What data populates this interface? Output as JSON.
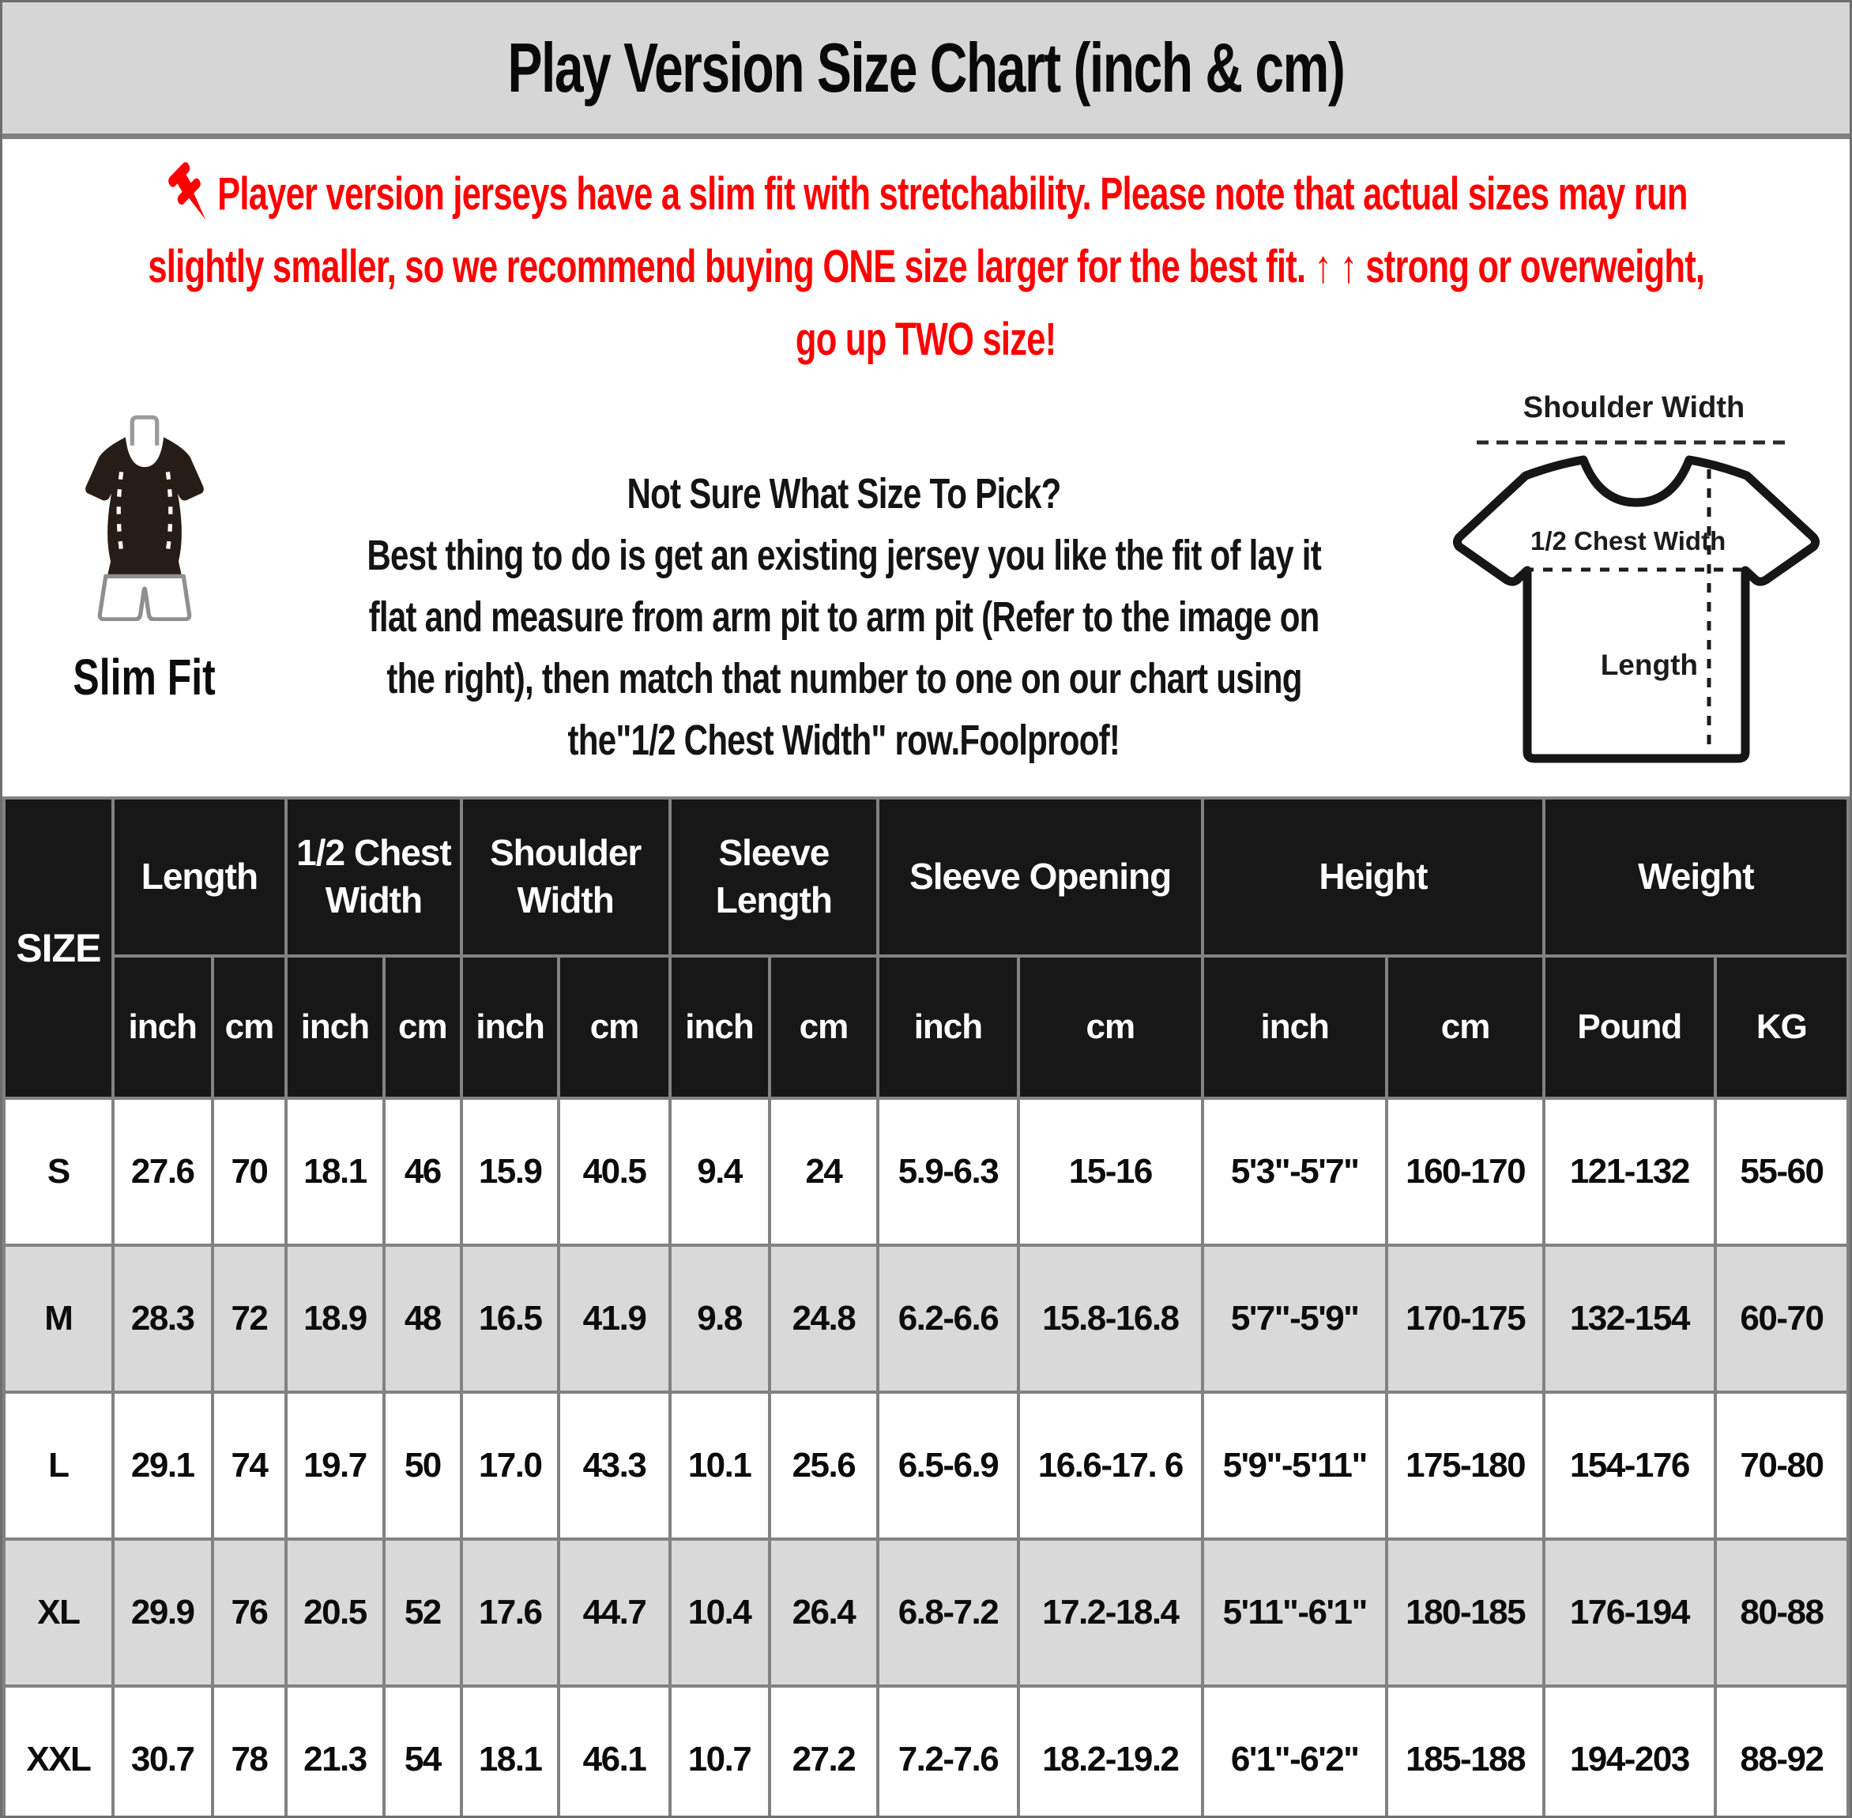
{
  "title": "Play Version Size Chart (inch & cm)",
  "notice": {
    "line1": "Player version jerseys have a slim fit with stretchability. Please note that actual sizes may run",
    "line2": "slightly smaller, so we recommend buying ONE size larger for the best fit. ↑ ↑ strong or overweight,",
    "line3": "go up TWO size!"
  },
  "figure": {
    "slim_fit_label": "Slim Fit"
  },
  "advice": {
    "heading": "Not Sure What Size To Pick?",
    "lines": [
      "Best thing to do is get an existing jersey you like the fit of lay it",
      "flat and measure from arm pit to arm pit (Refer to the image on",
      "the right), then match that number to one on our chart using",
      "the\"1/2 Chest Width\" row.Foolproof!"
    ]
  },
  "diagram": {
    "shoulder_width_label": "Shoulder Width",
    "half_chest_label": "1/2 Chest Width",
    "length_label": "Length"
  },
  "table": {
    "size_header": "SIZE",
    "groups": [
      {
        "label": "Length",
        "units": [
          "inch",
          "cm"
        ]
      },
      {
        "label": "1/2 Chest Width",
        "units": [
          "inch",
          "cm"
        ]
      },
      {
        "label": "Shoulder Width",
        "units": [
          "inch",
          "cm"
        ]
      },
      {
        "label": "Sleeve Length",
        "units": [
          "inch",
          "cm"
        ]
      },
      {
        "label": "Sleeve Opening",
        "units": [
          "inch",
          "cm"
        ]
      },
      {
        "label": "Height",
        "units": [
          "inch",
          "cm"
        ]
      },
      {
        "label": "Weight",
        "units": [
          "Pound",
          "KG"
        ]
      }
    ],
    "rows": [
      {
        "size": "S",
        "values": [
          "27.6",
          "70",
          "18.1",
          "46",
          "15.9",
          "40.5",
          "9.4",
          "24",
          "5.9-6.3",
          "15-16",
          "5'3\"-5'7\"",
          "160-170",
          "121-132",
          "55-60"
        ]
      },
      {
        "size": "M",
        "values": [
          "28.3",
          "72",
          "18.9",
          "48",
          "16.5",
          "41.9",
          "9.8",
          "24.8",
          "6.2-6.6",
          "15.8-16.8",
          "5'7\"-5'9\"",
          "170-175",
          "132-154",
          "60-70"
        ]
      },
      {
        "size": "L",
        "values": [
          "29.1",
          "74",
          "19.7",
          "50",
          "17.0",
          "43.3",
          "10.1",
          "25.6",
          "6.5-6.9",
          "16.6-17. 6",
          "5'9\"-5'11\"",
          "175-180",
          "154-176",
          "70-80"
        ]
      },
      {
        "size": "XL",
        "values": [
          "29.9",
          "76",
          "20.5",
          "52",
          "17.6",
          "44.7",
          "10.4",
          "26.4",
          "6.8-7.2",
          "17.2-18.4",
          "5'11\"-6'1\"",
          "180-185",
          "176-194",
          "80-88"
        ]
      },
      {
        "size": "XXL",
        "values": [
          "30.7",
          "78",
          "21.3",
          "54",
          "18.1",
          "46.1",
          "10.7",
          "27.2",
          "7.2-7.6",
          "18.2-19.2",
          "6'1\"-6'2\"",
          "185-188",
          "194-203",
          "88-92"
        ]
      }
    ]
  },
  "colors": {
    "accent_red": "#fe0000",
    "header_black": "#171717",
    "band_gray": "#d6d6d6",
    "row_gray": "#d9d9d9",
    "grid_gray": "#828282"
  }
}
